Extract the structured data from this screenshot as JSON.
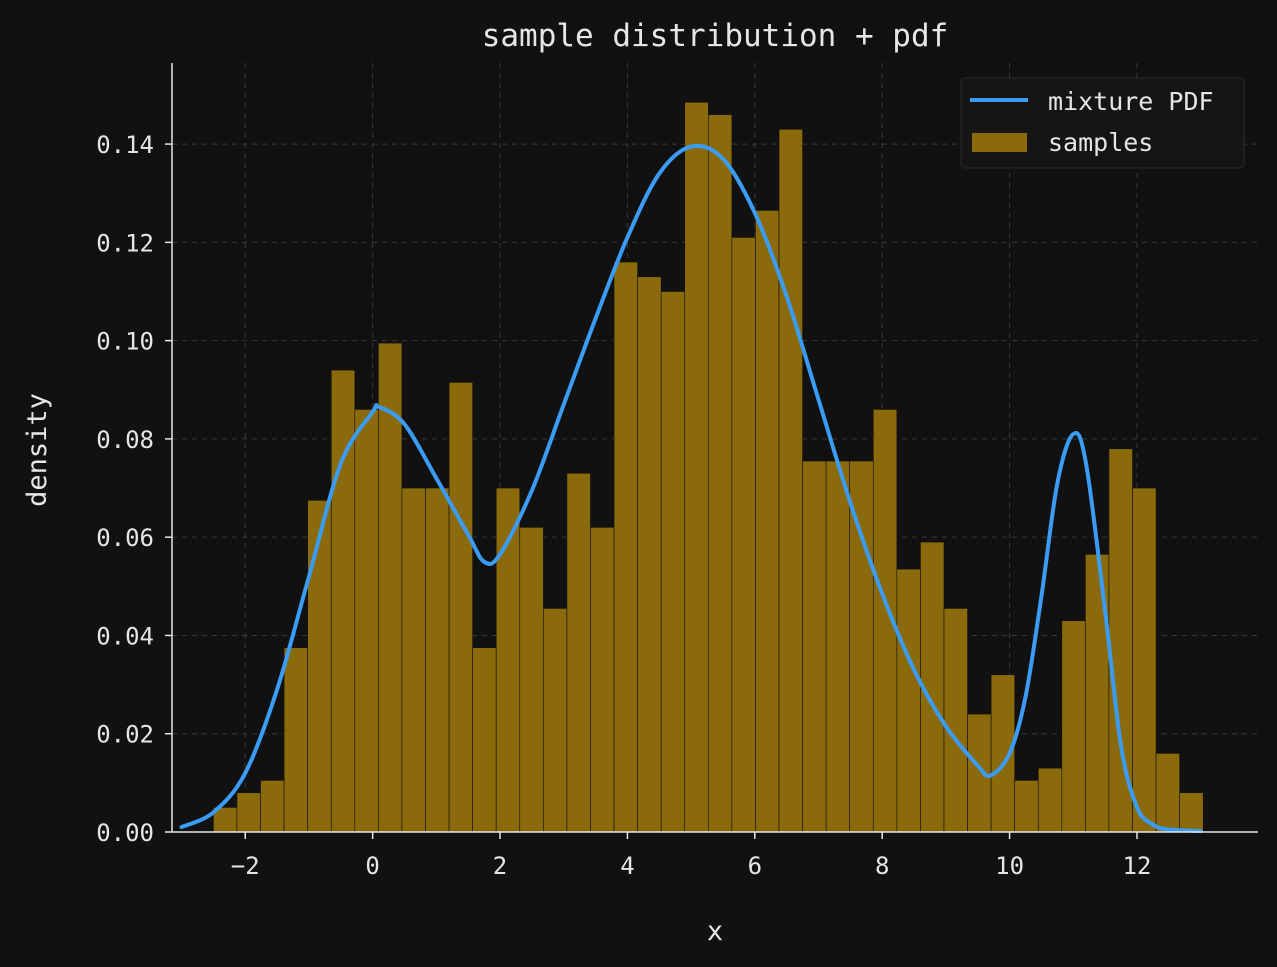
{
  "colors": {
    "background": "#111111",
    "text": "#e6e6e6",
    "grid": "#3a3a3a",
    "axis": "#e6e6e6",
    "bar_fill": "#8a6a0b",
    "bar_edge": "#111111",
    "pdf_line": "#3b9cf5",
    "legend_bg": "#151515",
    "legend_border": "#2a2a2a"
  },
  "chart_data": {
    "type": "bar",
    "title": "sample distribution + pdf",
    "xlabel": "x",
    "ylabel": "density",
    "xlim": [
      -3.15,
      13.9
    ],
    "ylim": [
      0,
      0.1565
    ],
    "xticks": [
      -2,
      0,
      2,
      4,
      6,
      8,
      10,
      12
    ],
    "xtick_labels": [
      "−2",
      "0",
      "2",
      "4",
      "6",
      "8",
      "10",
      "12"
    ],
    "yticks": [
      0,
      0.02,
      0.04,
      0.06,
      0.08,
      0.1,
      0.12,
      0.14
    ],
    "ytick_labels": [
      "0.00",
      "0.02",
      "0.04",
      "0.06",
      "0.08",
      "0.10",
      "0.12",
      "0.14"
    ],
    "grid": true,
    "legend_position": "top-right",
    "histogram": {
      "name": "samples",
      "bin_start": -2.5,
      "bin_width": 0.37,
      "values": [
        0.005,
        0.008,
        0.0105,
        0.0375,
        0.0675,
        0.094,
        0.086,
        0.0995,
        0.07,
        0.07,
        0.0915,
        0.0375,
        0.07,
        0.062,
        0.0455,
        0.073,
        0.062,
        0.116,
        0.113,
        0.11,
        0.1485,
        0.146,
        0.121,
        0.1265,
        0.143,
        0.0755,
        0.0755,
        0.0755,
        0.086,
        0.0535,
        0.059,
        0.0455,
        0.024,
        0.032,
        0.0105,
        0.013,
        0.043,
        0.0565,
        0.078,
        0.07,
        0.016,
        0.008
      ]
    },
    "series": [
      {
        "name": "mixture PDF",
        "x": [
          -3,
          -2.5,
          -2,
          -1.5,
          -1,
          -0.5,
          0,
          0.1,
          0.5,
          1,
          1.5,
          1.75,
          2,
          2.5,
          3,
          3.5,
          4,
          4.5,
          5,
          5.5,
          6,
          6.5,
          7,
          7.5,
          8,
          8.5,
          9,
          9.5,
          9.7,
          10,
          10.25,
          10.5,
          10.75,
          11,
          11.2,
          11.5,
          11.75,
          12,
          12.25,
          12.5,
          13
        ],
        "y": [
          0.001,
          0.004,
          0.012,
          0.029,
          0.052,
          0.075,
          0.0855,
          0.0865,
          0.083,
          0.072,
          0.0605,
          0.055,
          0.0565,
          0.0695,
          0.087,
          0.1045,
          0.121,
          0.134,
          0.1395,
          0.137,
          0.126,
          0.109,
          0.088,
          0.067,
          0.0485,
          0.033,
          0.0215,
          0.0135,
          0.0115,
          0.016,
          0.0275,
          0.048,
          0.071,
          0.081,
          0.075,
          0.045,
          0.0175,
          0.005,
          0.0015,
          0.0005,
          0.0002
        ]
      }
    ],
    "legend": [
      "mixture PDF",
      "samples"
    ]
  }
}
